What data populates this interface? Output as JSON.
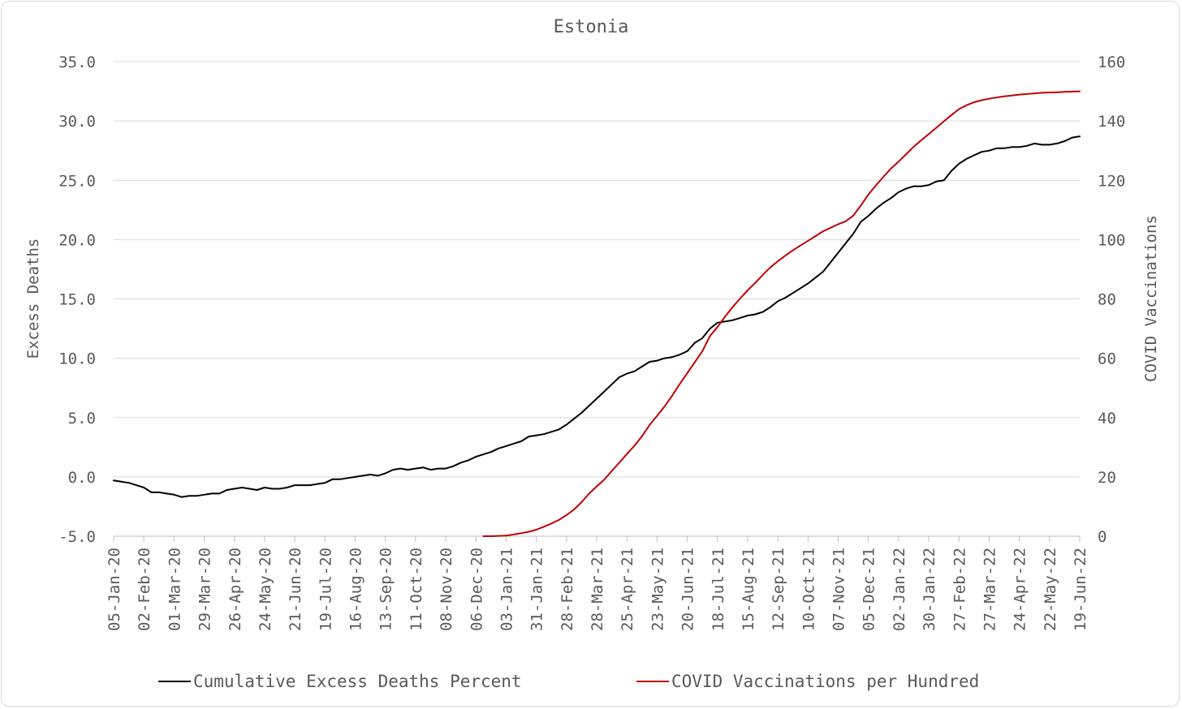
{
  "chart_data": {
    "type": "line",
    "title": "Estonia",
    "y_left": {
      "label": "Excess Deaths",
      "min": -5,
      "max": 35,
      "ticks": [
        -5,
        0,
        5,
        10,
        15,
        20,
        25,
        30,
        35
      ],
      "tick_labels": [
        "-5.0",
        "0.0",
        "5.0",
        "10.0",
        "15.0",
        "20.0",
        "25.0",
        "30.0",
        "35.0"
      ]
    },
    "y_right": {
      "label": "COVID Vaccinations",
      "min": 0,
      "max": 160,
      "ticks": [
        0,
        20,
        40,
        60,
        80,
        100,
        120,
        140,
        160
      ],
      "tick_labels": [
        "0",
        "20",
        "40",
        "60",
        "80",
        "100",
        "120",
        "140",
        "160"
      ]
    },
    "x_axis": {
      "start": "05-Jan-20",
      "end": "19-Jun-22",
      "num_weeks": 129,
      "tick_labels": [
        "05-Jan-20",
        "02-Feb-20",
        "01-Mar-20",
        "29-Mar-20",
        "26-Apr-20",
        "24-May-20",
        "21-Jun-20",
        "19-Jul-20",
        "16-Aug-20",
        "13-Sep-20",
        "11-Oct-20",
        "08-Nov-20",
        "06-Dec-20",
        "03-Jan-21",
        "31-Jan-21",
        "28-Feb-21",
        "28-Mar-21",
        "25-Apr-21",
        "23-May-21",
        "20-Jun-21",
        "18-Jul-21",
        "15-Aug-21",
        "12-Sep-21",
        "10-Oct-21",
        "07-Nov-21",
        "05-Dec-21",
        "02-Jan-22",
        "30-Jan-22",
        "27-Feb-22",
        "27-Mar-22",
        "24-Apr-22",
        "22-May-22",
        "19-Jun-22"
      ]
    },
    "gridlines": "horizontal",
    "legend_position": "bottom",
    "series": [
      {
        "name": "Cumulative Excess Deaths Percent",
        "axis": "left",
        "color": "#000000",
        "values": [
          -0.3,
          -0.4,
          -0.5,
          -0.7,
          -0.9,
          -1.3,
          -1.3,
          -1.4,
          -1.5,
          -1.7,
          -1.6,
          -1.6,
          -1.5,
          -1.4,
          -1.4,
          -1.1,
          -1.0,
          -0.9,
          -1.0,
          -1.1,
          -0.9,
          -1.0,
          -1.0,
          -0.9,
          -0.7,
          -0.7,
          -0.7,
          -0.6,
          -0.5,
          -0.2,
          -0.2,
          -0.1,
          0.0,
          0.1,
          0.2,
          0.1,
          0.3,
          0.6,
          0.7,
          0.6,
          0.7,
          0.8,
          0.6,
          0.7,
          0.7,
          0.9,
          1.2,
          1.4,
          1.7,
          1.9,
          2.1,
          2.4,
          2.6,
          2.8,
          3.0,
          3.4,
          3.5,
          3.6,
          3.8,
          4.0,
          4.4,
          4.9,
          5.4,
          6.0,
          6.6,
          7.2,
          7.8,
          8.4,
          8.7,
          8.9,
          9.3,
          9.7,
          9.8,
          10.0,
          10.1,
          10.3,
          10.6,
          11.3,
          11.7,
          12.5,
          13.0,
          13.1,
          13.2,
          13.4,
          13.6,
          13.7,
          13.9,
          14.3,
          14.8,
          15.1,
          15.5,
          15.9,
          16.3,
          16.8,
          17.3,
          18.1,
          18.9,
          19.7,
          20.5,
          21.5,
          22.0,
          22.6,
          23.1,
          23.5,
          24.0,
          24.3,
          24.5,
          24.5,
          24.6,
          24.9,
          25.0,
          25.8,
          26.4,
          26.8,
          27.1,
          27.4,
          27.5,
          27.7,
          27.7,
          27.8,
          27.8,
          27.9,
          28.1,
          28.0,
          28.0,
          28.1,
          28.3,
          28.6,
          28.7
        ]
      },
      {
        "name": "COVID Vaccinations per Hundred",
        "axis": "right",
        "color": "#c00000",
        "start_index": 49,
        "values": [
          0.0,
          0.0,
          0.1,
          0.2,
          0.6,
          1.0,
          1.5,
          2.2,
          3.2,
          4.3,
          5.5,
          7.1,
          9.0,
          11.5,
          14.4,
          16.8,
          19.1,
          22.0,
          24.8,
          27.7,
          30.5,
          33.7,
          37.5,
          40.6,
          43.8,
          47.4,
          51.3,
          55.0,
          58.7,
          62.4,
          67.5,
          70.5,
          74.0,
          77.2,
          80.1,
          82.9,
          85.4,
          88.1,
          90.6,
          92.7,
          94.6,
          96.4,
          98.0,
          99.6,
          101.2,
          102.8,
          104.0,
          105.2,
          106.2,
          108.1,
          111.5,
          115.2,
          118.3,
          121.2,
          124.0,
          126.3,
          128.8,
          131.3,
          133.5,
          135.6,
          137.7,
          139.9,
          142.0,
          144.0,
          145.3,
          146.3,
          147.0,
          147.5,
          147.9,
          148.3,
          148.6,
          148.9,
          149.1,
          149.3,
          149.5,
          149.6,
          149.7,
          149.8,
          149.9,
          150.0
        ]
      }
    ]
  }
}
